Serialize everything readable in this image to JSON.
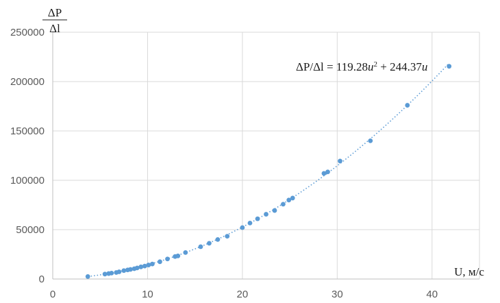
{
  "chart_data": {
    "type": "scatter",
    "ylabel_numerator": "ΔP",
    "ylabel_denominator": "Δl",
    "xlabel": "U, м/с",
    "xlim": [
      0,
      45
    ],
    "ylim": [
      0,
      250000
    ],
    "x_ticks": [
      0,
      10,
      20,
      30,
      40
    ],
    "y_ticks": [
      0,
      50000,
      100000,
      150000,
      200000,
      250000
    ],
    "x_tick_labels": [
      "0",
      "10",
      "20",
      "30",
      "40"
    ],
    "y_tick_labels": [
      "0",
      "50000",
      "100000",
      "150000",
      "200000",
      "250000"
    ],
    "grid": "vertical-and-horizontal",
    "marker_color": "#5b9bd5",
    "trendline": {
      "type": "polynomial",
      "a": 119.28,
      "b": 244.37,
      "color": "#5b9bd5",
      "x_range": [
        3.7,
        41.8
      ]
    },
    "equation": {
      "prefix": "ΔP/Δl = 119.28",
      "var1": "u",
      "sup": "2",
      "middle": " + 244.37",
      "var2": "u"
    },
    "series": [
      {
        "points": [
          [
            3.7,
            2500
          ],
          [
            5.5,
            5000
          ],
          [
            5.9,
            5500
          ],
          [
            6.2,
            6000
          ],
          [
            6.7,
            6600
          ],
          [
            7.0,
            7300
          ],
          [
            7.5,
            8500
          ],
          [
            7.9,
            9200
          ],
          [
            8.2,
            9700
          ],
          [
            8.6,
            10400
          ],
          [
            8.9,
            11200
          ],
          [
            9.3,
            12300
          ],
          [
            9.7,
            13100
          ],
          [
            10.1,
            14200
          ],
          [
            10.5,
            15200
          ],
          [
            11.3,
            17500
          ],
          [
            12.1,
            20300
          ],
          [
            12.9,
            22800
          ],
          [
            13.2,
            23400
          ],
          [
            14.0,
            26800
          ],
          [
            15.6,
            32700
          ],
          [
            16.5,
            36200
          ],
          [
            17.4,
            40000
          ],
          [
            18.4,
            43300
          ],
          [
            20.0,
            52100
          ],
          [
            20.8,
            56700
          ],
          [
            21.6,
            61000
          ],
          [
            22.5,
            65600
          ],
          [
            23.4,
            69400
          ],
          [
            24.3,
            75800
          ],
          [
            24.9,
            80000
          ],
          [
            25.3,
            82000
          ],
          [
            28.6,
            107000
          ],
          [
            29.0,
            108500
          ],
          [
            30.3,
            119500
          ],
          [
            33.5,
            140000
          ],
          [
            37.4,
            176000
          ],
          [
            41.8,
            215500
          ]
        ]
      }
    ]
  }
}
